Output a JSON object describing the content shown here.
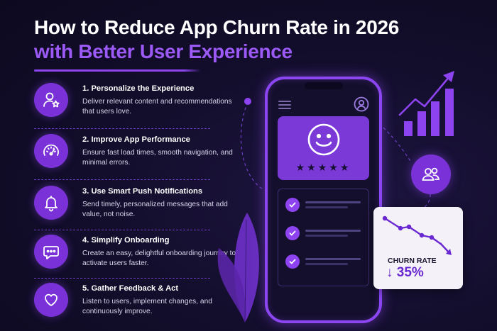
{
  "title": {
    "line1": "How to Reduce App Churn Rate in 2026",
    "line2": "with Better User Experience"
  },
  "tips": [
    {
      "heading": "1. Personalize the Experience",
      "body": "Deliver relevant content and recommendations that users love.",
      "icon": "user-star-icon"
    },
    {
      "heading": "2. Improve App Performance",
      "body": "Ensure fast load times, smooth navigation, and minimal errors.",
      "icon": "speedometer-icon"
    },
    {
      "heading": "3. Use Smart Push Notifications",
      "body": "Send timely, personalized messages that add value, not noise.",
      "icon": "bell-icon"
    },
    {
      "heading": "4. Simplify Onboarding",
      "body": "Create an easy, delightful onboarding journey to activate users faster.",
      "icon": "chat-bubble-icon"
    },
    {
      "heading": "5. Gather Feedback & Act",
      "body": "Listen to users, implement changes, and continuously improve.",
      "icon": "heart-icon"
    }
  ],
  "phone": {
    "stars": "★★★★★",
    "checklist_count": 3
  },
  "churn": {
    "label": "CHURN RATE",
    "value": "↓ 35%"
  },
  "colors": {
    "accent": "#8d44f0",
    "background": "#120d2a",
    "card": "#7b3ad8",
    "churn_value": "#6a28d0"
  }
}
